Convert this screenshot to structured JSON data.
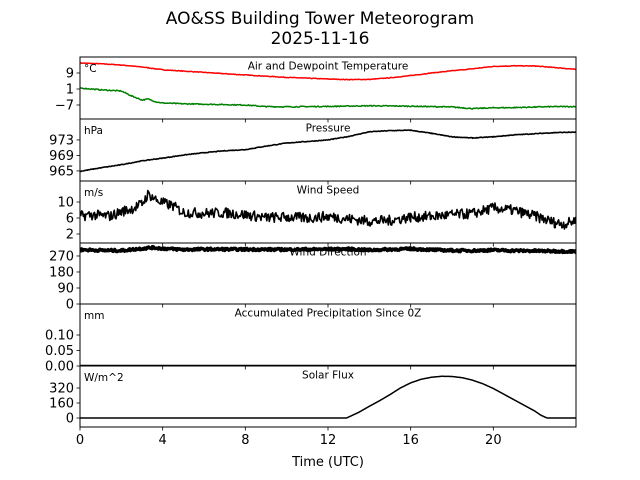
{
  "chart_data": {
    "type": "line",
    "title": "AO&SS Building Tower Meteorogram",
    "subtitle": "2025-11-16",
    "xlabel": "Time (UTC)",
    "xlim": [
      0,
      24
    ],
    "xticks": [
      0,
      4,
      8,
      12,
      16,
      20
    ],
    "xtick_labels": [
      "0",
      "4",
      "8",
      "12",
      "16",
      "20"
    ],
    "panels": [
      {
        "key": "temp",
        "title": "Air and Dewpoint Temperature",
        "unit": "°C",
        "ylim": [
          -14,
          17
        ],
        "yticks": [
          9,
          1,
          -7
        ],
        "ytick_labels": [
          "9",
          "1",
          "−7"
        ],
        "series": [
          {
            "name": "Air Temperature",
            "color": "#ff0000",
            "x": [
              0,
              1,
              2,
              3,
              4,
              6,
              8,
              10,
              12,
              13,
              14,
              15,
              16,
              17,
              18,
              19,
              20,
              21,
              22,
              23,
              24
            ],
            "y": [
              14,
              13.6,
              13,
              12,
              10.6,
              9.3,
              8,
              6.8,
              6,
              5.7,
              5.8,
              6.6,
              7.7,
              9,
              10.1,
              11.1,
              12.3,
              12.6,
              12.5,
              11.7,
              10.8
            ]
          },
          {
            "name": "Dewpoint Temperature",
            "color": "#008000",
            "x": [
              0,
              1,
              2,
              2.5,
              3,
              3.3,
              3.7,
              4,
              5,
              6,
              7,
              8,
              9,
              10,
              12,
              14,
              16,
              18,
              19,
              20,
              21,
              22,
              23,
              24
            ],
            "y": [
              1.5,
              0.6,
              0,
              -2.5,
              -4.5,
              -4,
              -5.5,
              -6,
              -6.4,
              -6.6,
              -6.8,
              -7,
              -7.8,
              -7.9,
              -7.7,
              -7.4,
              -7.6,
              -8,
              -8.8,
              -8.4,
              -8.3,
              -8.0,
              -7.8,
              -7.8
            ]
          }
        ]
      },
      {
        "key": "pressure",
        "title": "Pressure",
        "unit": "hPa",
        "ylim": [
          962.4,
          978.4
        ],
        "yticks": [
          973,
          969,
          965
        ],
        "ytick_labels": [
          "973",
          "969",
          "965"
        ],
        "series": [
          {
            "name": "Pressure",
            "color": "#000000",
            "x": [
              0,
              1,
              2,
              3,
              4,
              5,
              6,
              7,
              8,
              9,
              10,
              11,
              12,
              13,
              14,
              15,
              16,
              17,
              18,
              19,
              20,
              21,
              22,
              23,
              24
            ],
            "y": [
              964.9,
              965.8,
              966.6,
              967.6,
              968.3,
              969.1,
              969.7,
              970.2,
              970.5,
              971.4,
              972.2,
              972.6,
              973,
              973.9,
              975.1,
              975.4,
              975.5,
              974.7,
              973.8,
              973.5,
              973.8,
              974.3,
              974.6,
              974.9,
              975
            ]
          }
        ]
      },
      {
        "key": "wind_speed",
        "title": "Wind Speed",
        "unit": "m/s",
        "ylim": [
          -0.25,
          15.25
        ],
        "yticks": [
          10,
          6,
          2
        ],
        "ytick_labels": [
          "10",
          "6",
          "2"
        ],
        "series": [
          {
            "name": "Wind Speed",
            "color": "#000000",
            "x": [
              0,
              0.5,
              1,
              1.5,
              2,
              2.5,
              3,
              3.3,
              3.7,
              4,
              4.5,
              5,
              6,
              7,
              8,
              9,
              10,
              11,
              12,
              13,
              14,
              15,
              16,
              17,
              18,
              19,
              20,
              21,
              22,
              23,
              23.5,
              24
            ],
            "y": [
              6.5,
              6.8,
              6.6,
              6.5,
              7.6,
              8.3,
              9.5,
              12,
              10.5,
              9.8,
              9,
              7.4,
              7.2,
              7.3,
              6.8,
              6.1,
              6.2,
              6.0,
              6.4,
              5.8,
              5.2,
              5.4,
              6.2,
              6.4,
              6.8,
              7.1,
              8.5,
              7.9,
              6.5,
              4.8,
              4.5,
              5.5
            ]
          }
        ]
      },
      {
        "key": "wind_direction",
        "title": "Wind Direction",
        "unit": "",
        "ylim": [
          0,
          343
        ],
        "yticks": [
          270,
          180,
          90,
          0
        ],
        "ytick_labels": [
          "270",
          "180",
          "90",
          "0"
        ],
        "series": [
          {
            "name": "Wind Direction",
            "color": "#000000",
            "x": [
              0,
              1,
              2,
              3,
              3.5,
              4,
              5,
              6,
              8,
              10,
              12,
              13,
              14,
              15,
              16,
              17,
              18,
              19,
              20,
              21,
              22,
              23,
              24
            ],
            "y": [
              305,
              302,
              300,
              312,
              317,
              312,
              306,
              308,
              307,
              306,
              308,
              309,
              303,
              307,
              310,
              305,
              301,
              300,
              303,
              300,
              299,
              297,
              295
            ]
          }
        ]
      },
      {
        "key": "precip",
        "title": "Accumulated Precipitation Since 0Z",
        "unit": "mm",
        "ylim": [
          0,
          0.2
        ],
        "yticks": [
          0.1,
          0.05,
          0.0
        ],
        "ytick_labels": [
          "0.10",
          "0.05",
          "0.00"
        ],
        "series": [
          {
            "name": "Accumulated Precipitation",
            "color": "#000000",
            "x": [
              0,
              24
            ],
            "y": [
              0,
              0
            ]
          }
        ]
      },
      {
        "key": "solar",
        "title": "Solar Flux",
        "unit": "W/m^2",
        "ylim": [
          -96,
          555
        ],
        "yticks": [
          320,
          160,
          0
        ],
        "ytick_labels": [
          "320",
          "160",
          "0"
        ],
        "series": [
          {
            "name": "Solar Flux",
            "color": "#000000",
            "x": [
              0,
              12.9,
              13.5,
              14,
              14.5,
              15,
              15.5,
              16,
              16.5,
              17,
              17.5,
              18,
              18.5,
              19,
              19.5,
              20,
              20.5,
              21,
              21.5,
              22,
              22.3,
              22.6,
              24
            ],
            "y": [
              0,
              0,
              62,
              125,
              185,
              250,
              320,
              375,
              413,
              435,
              445,
              443,
              430,
              403,
              365,
              315,
              255,
              195,
              135,
              75,
              30,
              0,
              0
            ]
          }
        ]
      }
    ]
  }
}
